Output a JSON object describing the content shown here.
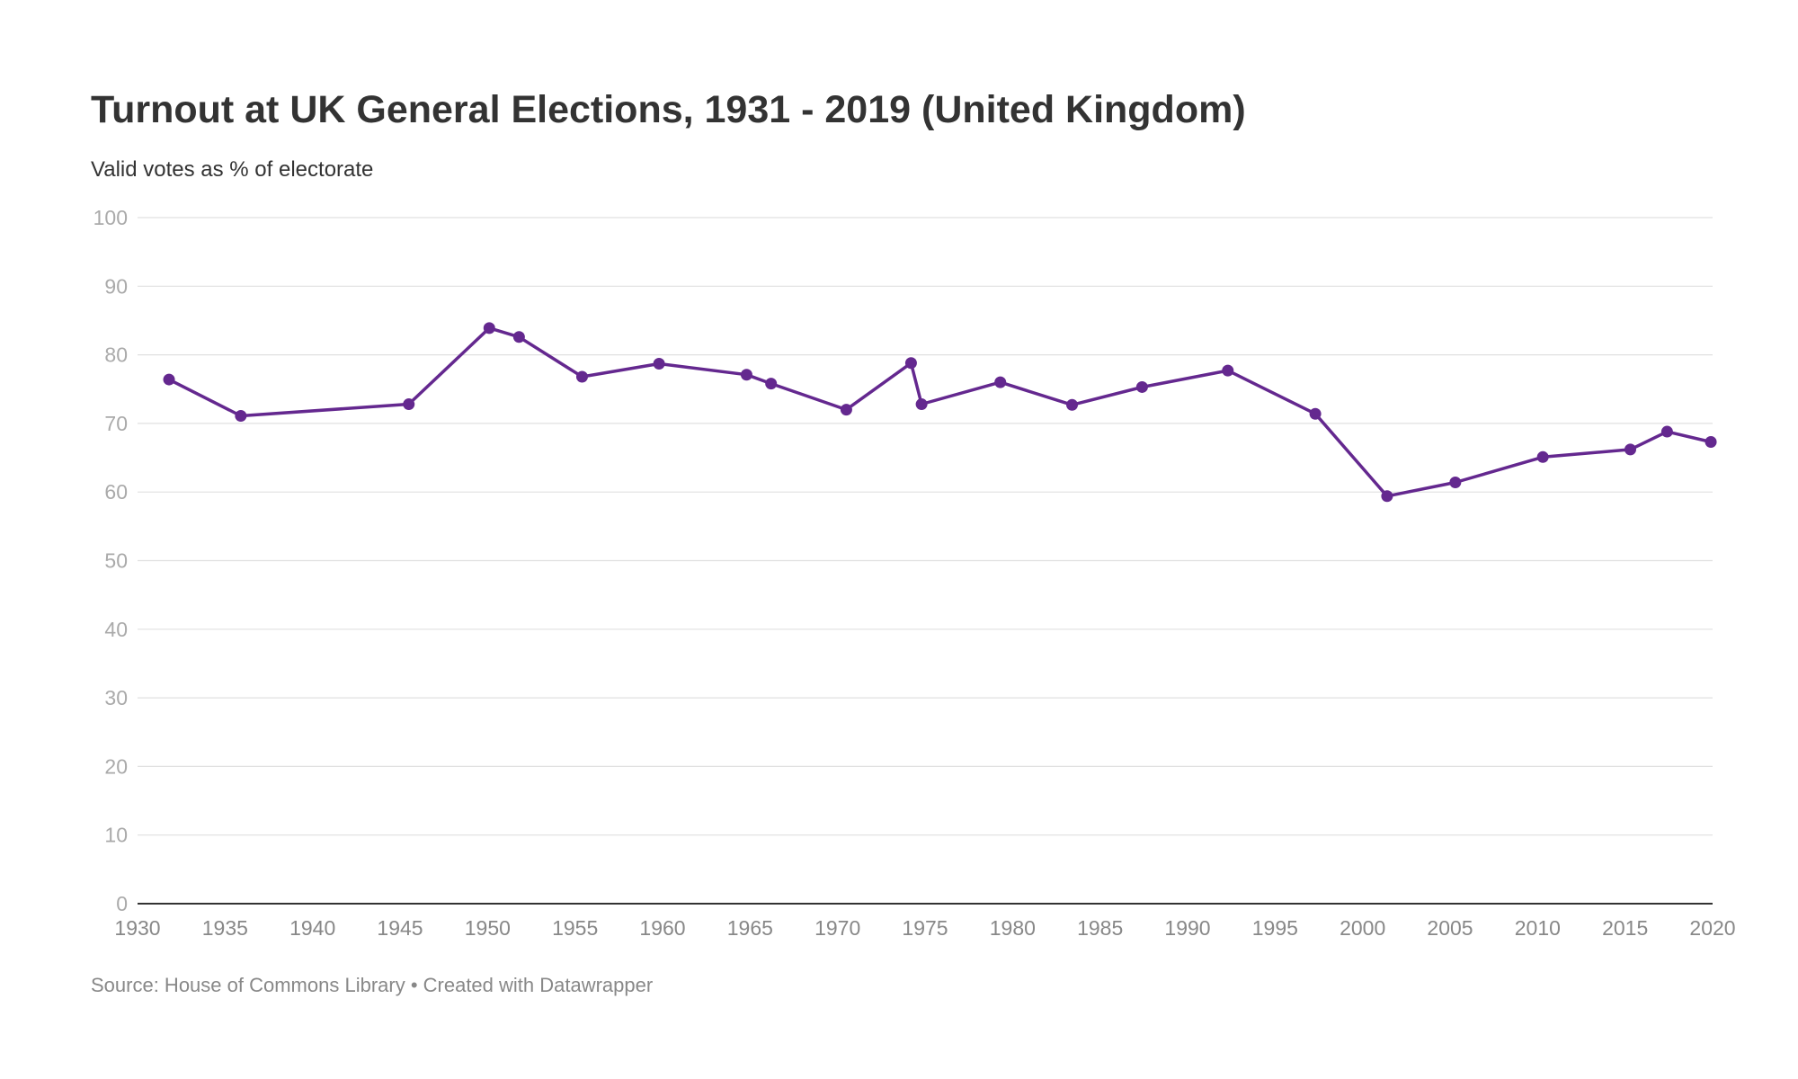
{
  "header": {
    "title": "Turnout at UK General Elections, 1931 - 2019 (United Kingdom)",
    "subtitle": "Valid votes as % of electorate"
  },
  "footer": {
    "source_label": "Source:",
    "source_name": "House of Commons Library",
    "separator": "•",
    "credit": "Created with Datawrapper",
    "text": "Source: House of Commons Library • Created with Datawrapper"
  },
  "colors": {
    "series": "#64288f",
    "grid": "#e0e0e0",
    "baseline": "#333333",
    "y_tick_label": "#aaaaaa",
    "x_tick_label": "#888888"
  },
  "chart_data": {
    "type": "line",
    "title": "Turnout at UK General Elections, 1931 - 2019 (United Kingdom)",
    "subtitle": "Valid votes as % of electorate",
    "xlabel": "",
    "ylabel": "",
    "xlim": [
      1930,
      2020
    ],
    "ylim": [
      0,
      100
    ],
    "x_ticks": [
      1930,
      1935,
      1940,
      1945,
      1950,
      1955,
      1960,
      1965,
      1970,
      1975,
      1980,
      1985,
      1990,
      1995,
      2000,
      2005,
      2010,
      2015,
      2020
    ],
    "y_ticks": [
      0,
      10,
      20,
      30,
      40,
      50,
      60,
      70,
      80,
      90,
      100
    ],
    "grid": true,
    "legend": "none",
    "series": [
      {
        "name": "Turnout",
        "x": [
          1931.8,
          1935.9,
          1945.5,
          1950.1,
          1951.8,
          1955.4,
          1959.8,
          1964.8,
          1966.2,
          1970.5,
          1974.2,
          1974.8,
          1979.3,
          1983.4,
          1987.4,
          1992.3,
          1997.3,
          2001.4,
          2005.3,
          2010.3,
          2015.3,
          2017.4,
          2019.9
        ],
        "values": [
          76.4,
          71.1,
          72.8,
          83.9,
          82.6,
          76.8,
          78.7,
          77.1,
          75.8,
          72.0,
          78.8,
          72.8,
          76.0,
          72.7,
          75.3,
          77.7,
          71.4,
          59.4,
          61.4,
          65.1,
          66.2,
          68.8,
          67.3
        ]
      }
    ]
  }
}
